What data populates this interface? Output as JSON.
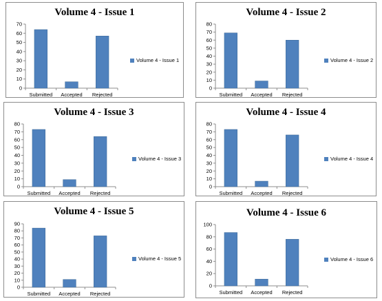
{
  "chart_data": [
    {
      "type": "bar",
      "title": "Volume 4 - Issue 1",
      "categories": [
        "Submitted",
        "Accepted",
        "Rejected"
      ],
      "series": [
        {
          "name": "Volume 4 - Issue 1",
          "values": [
            64,
            7,
            57
          ],
          "color": "#4f81bd"
        }
      ],
      "ylim": [
        0,
        70
      ],
      "yticks": [
        0,
        10,
        20,
        30,
        40,
        50,
        60,
        70
      ],
      "xlabel": "",
      "ylabel": "",
      "grid": false,
      "legend": "right"
    },
    {
      "type": "bar",
      "title": "Volume 4 - Issue 2",
      "categories": [
        "Submitted",
        "Accepted",
        "Rejected"
      ],
      "series": [
        {
          "name": "Volume 4 - Issue 2",
          "values": [
            69,
            9,
            60
          ],
          "color": "#4f81bd"
        }
      ],
      "ylim": [
        0,
        80
      ],
      "yticks": [
        0,
        10,
        20,
        30,
        40,
        50,
        60,
        70,
        80
      ],
      "xlabel": "",
      "ylabel": "",
      "grid": false,
      "legend": "right"
    },
    {
      "type": "bar",
      "title": "Volume 4 - Issue 3",
      "categories": [
        "Submitted",
        "Accepted",
        "Rejected"
      ],
      "series": [
        {
          "name": "Volume 4 - Issue 3",
          "values": [
            73,
            9,
            64
          ],
          "color": "#4f81bd"
        }
      ],
      "ylim": [
        0,
        80
      ],
      "yticks": [
        0,
        10,
        20,
        30,
        40,
        50,
        60,
        70,
        80
      ],
      "xlabel": "",
      "ylabel": "",
      "grid": false,
      "legend": "right"
    },
    {
      "type": "bar",
      "title": "Volume 4 - Issue 4",
      "categories": [
        "Submitted",
        "Accepted",
        "Rejected"
      ],
      "series": [
        {
          "name": "Volume 4 - Issue 4",
          "values": [
            73,
            7,
            66
          ],
          "color": "#4f81bd"
        }
      ],
      "ylim": [
        0,
        80
      ],
      "yticks": [
        0,
        10,
        20,
        30,
        40,
        50,
        60,
        70,
        80
      ],
      "xlabel": "",
      "ylabel": "",
      "grid": false,
      "legend": "right"
    },
    {
      "type": "bar",
      "title": "Volume 4 - Issue 5",
      "categories": [
        "Submitted",
        "Accepted",
        "Rejected"
      ],
      "series": [
        {
          "name": "Volume 4 - Issue 5",
          "values": [
            84,
            11,
            73
          ],
          "color": "#4f81bd"
        }
      ],
      "ylim": [
        0,
        90
      ],
      "yticks": [
        0,
        10,
        20,
        30,
        40,
        50,
        60,
        70,
        80,
        90
      ],
      "xlabel": "",
      "ylabel": "",
      "grid": false,
      "legend": "right"
    },
    {
      "type": "bar",
      "title": "Volume 4 - Issue 6",
      "categories": [
        "Submitted",
        "Accepted",
        "Rejected"
      ],
      "series": [
        {
          "name": "Volume 4 - Issue 6",
          "values": [
            87,
            11,
            76
          ],
          "color": "#4f81bd"
        }
      ],
      "ylim": [
        0,
        100
      ],
      "yticks": [
        0,
        20,
        40,
        60,
        80,
        100
      ],
      "xlabel": "",
      "ylabel": "",
      "grid": false,
      "legend": "right"
    }
  ]
}
